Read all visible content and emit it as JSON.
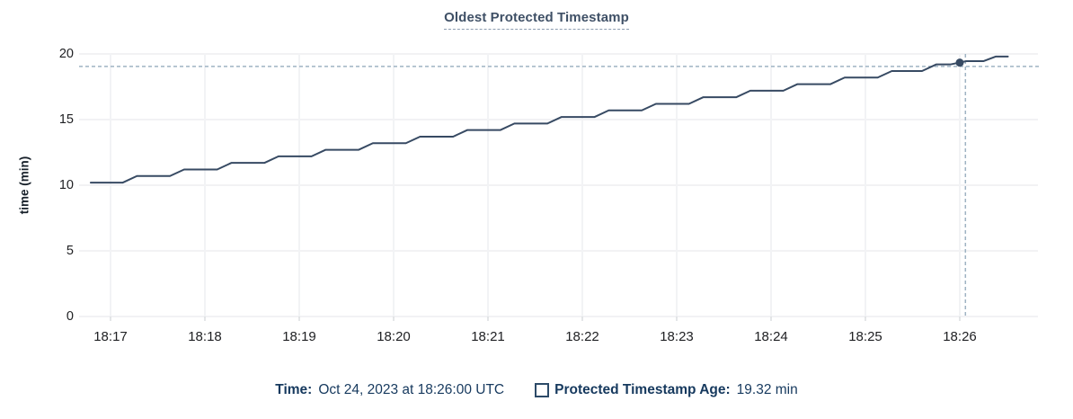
{
  "chart_data": {
    "type": "line",
    "title": "Oldest Protected Timestamp",
    "xlabel": "",
    "ylabel": "time (min)",
    "ylim": [
      0,
      20
    ],
    "y_ticks": [
      0,
      5,
      10,
      15,
      20
    ],
    "x_ticks": [
      "18:17",
      "18:18",
      "18:19",
      "18:20",
      "18:21",
      "18:22",
      "18:23",
      "18:24",
      "18:25",
      "18:26"
    ],
    "x_range_offsets_min": [
      -0.333,
      9.83
    ],
    "grid": "both",
    "legend_position": "bottom",
    "series": [
      {
        "name": "Protected Timestamp Age",
        "unit": "min",
        "points": [
          [
            -0.21,
            10.2
          ],
          [
            0.13,
            10.2
          ],
          [
            0.28,
            10.7
          ],
          [
            0.63,
            10.7
          ],
          [
            0.78,
            11.2
          ],
          [
            1.13,
            11.2
          ],
          [
            1.28,
            11.7
          ],
          [
            1.63,
            11.7
          ],
          [
            1.78,
            12.2
          ],
          [
            2.13,
            12.2
          ],
          [
            2.28,
            12.7
          ],
          [
            2.63,
            12.7
          ],
          [
            2.78,
            13.2
          ],
          [
            3.13,
            13.2
          ],
          [
            3.28,
            13.7
          ],
          [
            3.63,
            13.7
          ],
          [
            3.78,
            14.2
          ],
          [
            4.13,
            14.2
          ],
          [
            4.28,
            14.7
          ],
          [
            4.63,
            14.7
          ],
          [
            4.78,
            15.2
          ],
          [
            5.13,
            15.2
          ],
          [
            5.28,
            15.7
          ],
          [
            5.63,
            15.7
          ],
          [
            5.78,
            16.2
          ],
          [
            6.13,
            16.2
          ],
          [
            6.28,
            16.7
          ],
          [
            6.63,
            16.7
          ],
          [
            6.78,
            17.2
          ],
          [
            7.13,
            17.2
          ],
          [
            7.28,
            17.7
          ],
          [
            7.63,
            17.7
          ],
          [
            7.78,
            18.2
          ],
          [
            8.13,
            18.2
          ],
          [
            8.28,
            18.7
          ],
          [
            8.6,
            18.7
          ],
          [
            8.75,
            19.2
          ],
          [
            8.9,
            19.2
          ],
          [
            9.07,
            19.45
          ],
          [
            9.25,
            19.45
          ],
          [
            9.38,
            19.8
          ],
          [
            9.51,
            19.8
          ]
        ]
      }
    ],
    "hover": {
      "snap_point": {
        "x_min": 9.0,
        "y_min": 19.34
      },
      "crosshair": {
        "x_min": 9.06,
        "y_min": 19.05
      }
    }
  },
  "legend": {
    "time_label": "Time:",
    "time_value": "Oct 24, 2023 at 18:26:00 UTC",
    "series_label": "Protected Timestamp Age:",
    "series_value": "19.32 min"
  },
  "colors": {
    "line": "#374a63",
    "dot": "#374a63",
    "crosshair": "#9fb3c3",
    "grid_horizontal": "#e9ebed",
    "grid_vertical": "#f2f3f5",
    "axis_tick": "#d5d8db",
    "title": "#3f5066",
    "legend_text": "#16395e"
  }
}
